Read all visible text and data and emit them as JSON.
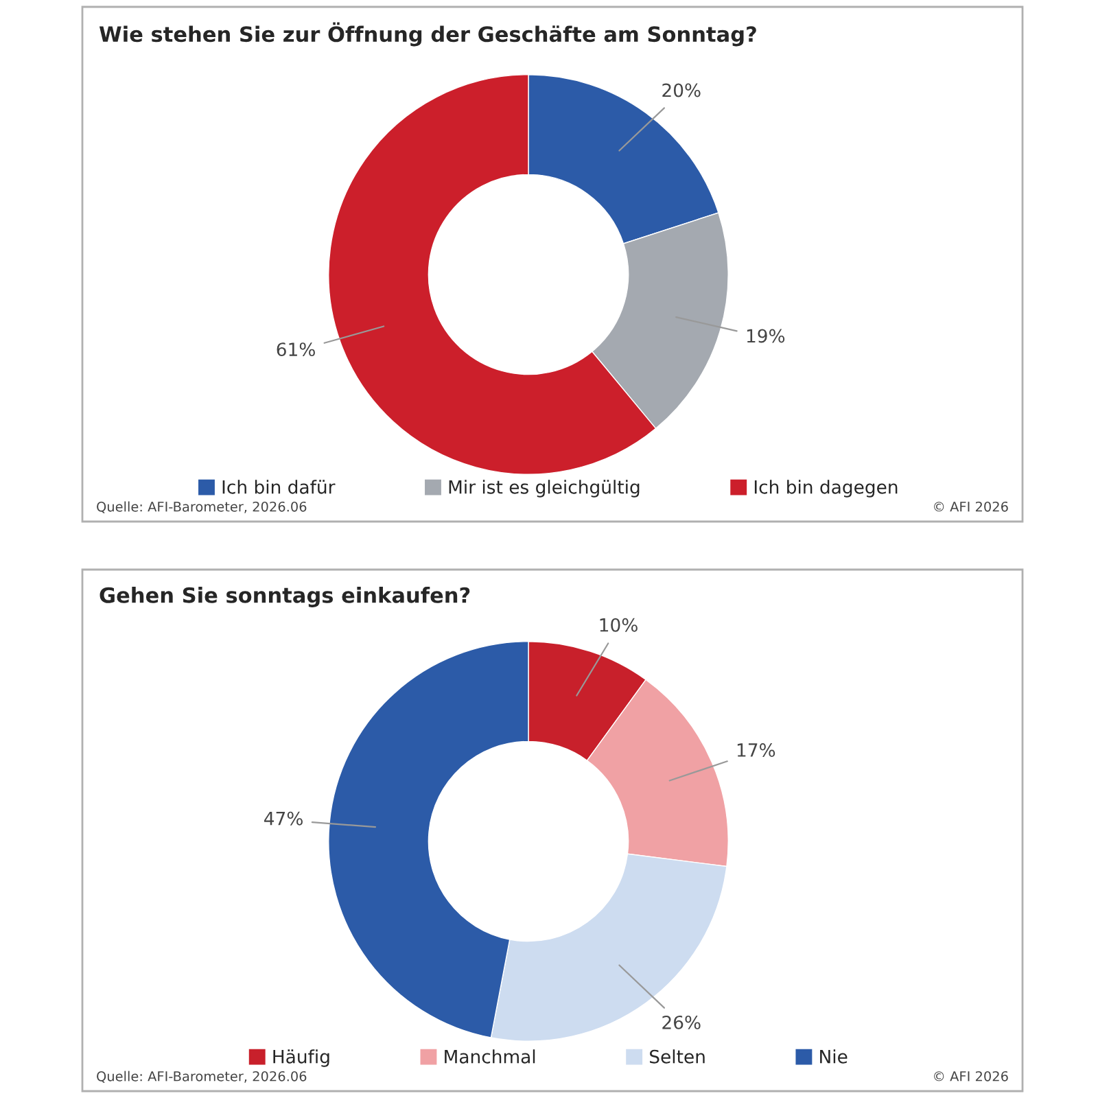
{
  "chart_data": [
    {
      "type": "donut",
      "title": "Wie stehen Sie zur Öffnung der Geschäfte am Sonntag?",
      "categories": [
        "Ich bin dafür",
        "Mir ist es gleichgültig",
        "Ich bin dagegen"
      ],
      "values": [
        20,
        19,
        61
      ],
      "colors": [
        "#2c5ba8",
        "#a4a9b0",
        "#cc1f2b"
      ],
      "value_labels": [
        "20%",
        "19%",
        "61%"
      ],
      "legend": "bottom",
      "annotations": [
        "Quelle: AFI-Barometer, 2026.06",
        "© AFI 2026"
      ]
    },
    {
      "type": "donut",
      "title": "Gehen Sie sonntags einkaufen?",
      "categories": [
        "Häufig",
        "Manchmal",
        "Selten",
        "Nie"
      ],
      "values": [
        10,
        17,
        26,
        47
      ],
      "colors": [
        "#c8202b",
        "#f0a1a4",
        "#cddcf0",
        "#2c5ba8"
      ],
      "value_labels": [
        "10%",
        "17%",
        "26%",
        "47%"
      ],
      "legend": "bottom",
      "annotations": [
        "Quelle: AFI-Barometer, 2026.06",
        "© AFI 2026"
      ]
    }
  ]
}
